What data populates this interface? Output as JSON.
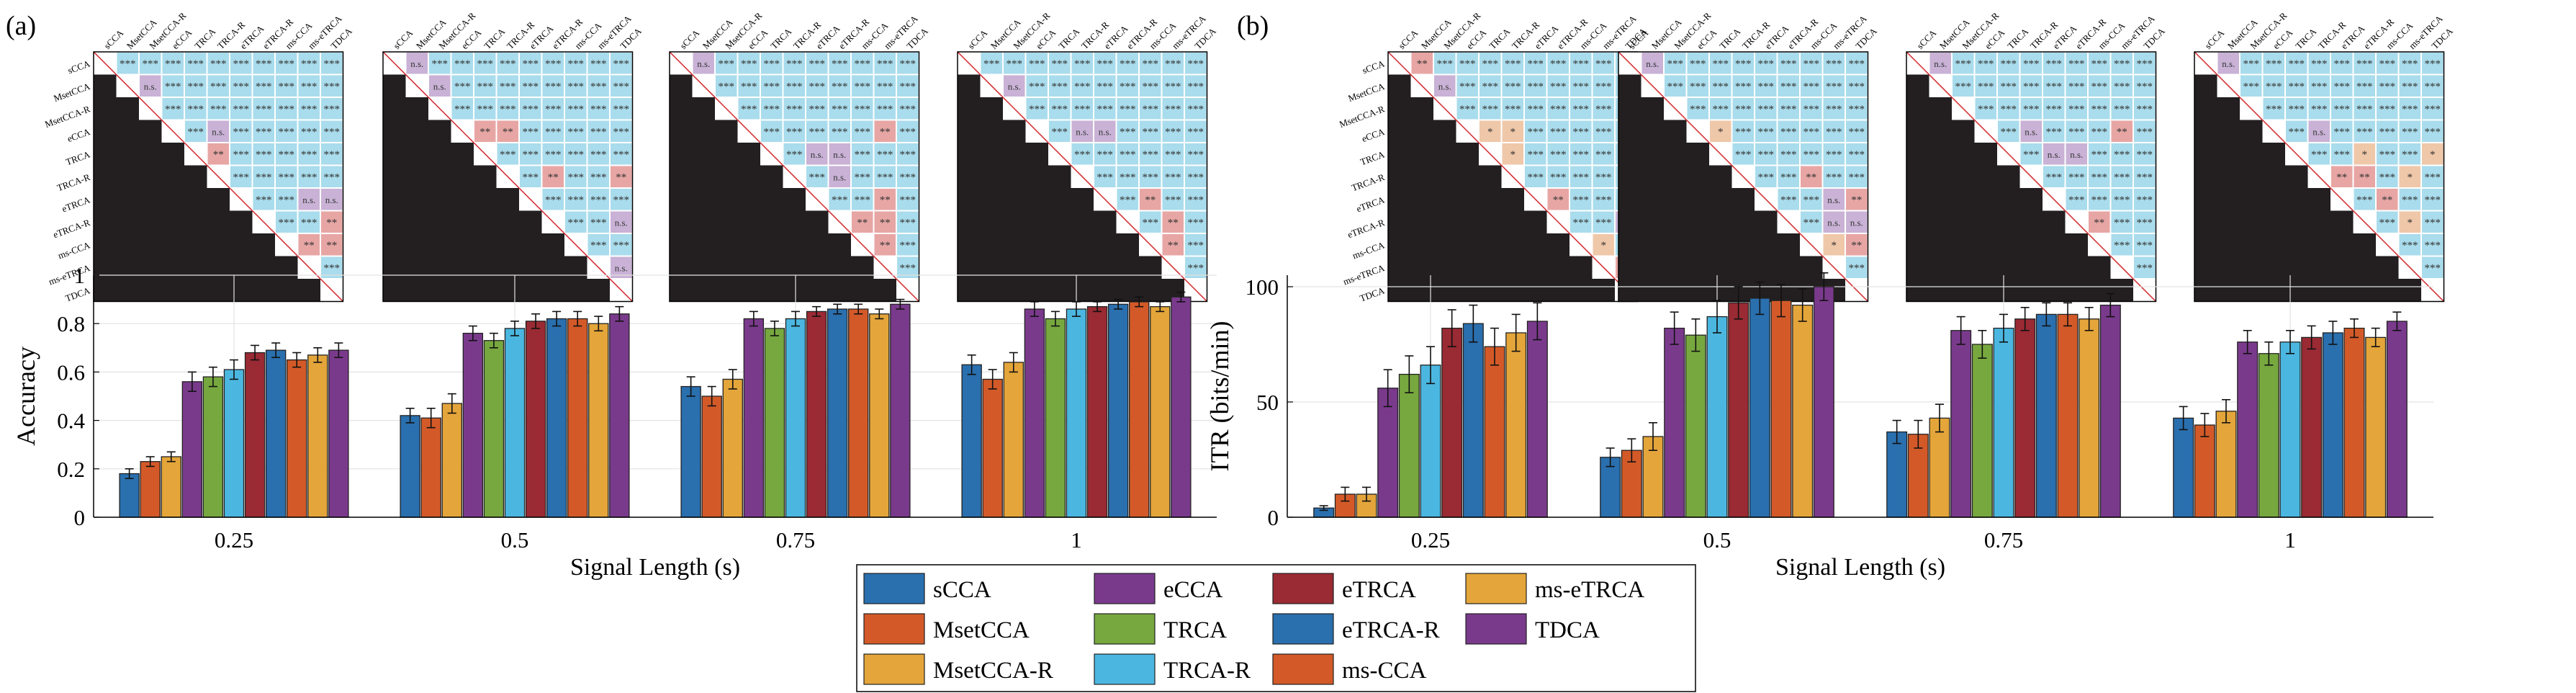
{
  "panels": [
    {
      "label": "(a)"
    },
    {
      "label": "(b)"
    }
  ],
  "methods": [
    "sCCA",
    "MsetCCA",
    "MsetCCA-R",
    "eCCA",
    "TRCA",
    "TRCA-R",
    "eTRCA",
    "eTRCA-R",
    "ms-CCA",
    "ms-eTRCA",
    "TDCA"
  ],
  "colors": {
    "sCCA": "#2a6fae",
    "MsetCCA": "#d35a28",
    "MsetCCA-R": "#e4a53a",
    "eCCA": "#7a3a8c",
    "TRCA": "#77a83f",
    "TRCA-R": "#4bb7e0",
    "eTRCA": "#9a2a33",
    "eTRCA-R": "#2a6fae",
    "ms-CCA": "#d35a28",
    "ms-eTRCA": "#e4a53a",
    "TDCA": "#7a3a8c",
    "matrix_bg": "#231f20",
    "sig_high": "#a9dcec",
    "ns": "#c9b2d6",
    "sig_mid": "#e7a6a4",
    "sig_low": "#efc7a9"
  },
  "legend": {
    "entries": [
      "sCCA",
      "eCCA",
      "eTRCA",
      "ms-eTRCA",
      "MsetCCA",
      "TRCA",
      "eTRCA-R",
      "TDCA",
      "MsetCCA-R",
      "TRCA-R",
      "ms-CCA"
    ]
  },
  "significance": {
    "ns_label": "n.s.",
    "levels": {
      "3": "***",
      "2": "**",
      "1": "*"
    },
    "matrices": [
      [
        [
          3,
          3,
          3,
          3,
          3,
          3,
          3,
          3,
          3,
          3
        ],
        [
          0,
          3,
          3,
          3,
          3,
          3,
          3,
          3,
          3,
          3
        ],
        [
          3,
          3,
          3,
          3,
          3,
          3,
          3,
          3,
          3
        ],
        [
          3,
          0,
          3,
          3,
          3,
          3,
          3,
          3
        ],
        [
          2,
          3,
          3,
          3,
          3,
          3,
          3
        ],
        [
          3,
          3,
          3,
          3,
          3,
          3
        ],
        [
          3,
          3,
          0,
          0,
          0
        ],
        [
          3,
          3,
          2,
          0
        ],
        [
          2,
          2,
          2
        ],
        [
          3,
          0
        ],
        [
          0
        ]
      ],
      [
        [
          0,
          3,
          3,
          3,
          3,
          3,
          3,
          3,
          3,
          3
        ],
        [
          0,
          3,
          3,
          3,
          3,
          3,
          3,
          3,
          3
        ],
        [
          3,
          3,
          3,
          3,
          3,
          3,
          3,
          3
        ],
        [
          2,
          2,
          3,
          3,
          3,
          3,
          3
        ],
        [
          3,
          3,
          3,
          3,
          3,
          3
        ],
        [
          3,
          2,
          3,
          3,
          2
        ],
        [
          3,
          3,
          3,
          3
        ],
        [
          3,
          3,
          0
        ],
        [
          3,
          3
        ],
        [
          0
        ]
      ],
      [
        [
          0,
          3,
          3,
          3,
          3,
          3,
          3,
          3,
          3,
          3
        ],
        [
          3,
          3,
          3,
          3,
          3,
          3,
          3,
          3,
          3
        ],
        [
          3,
          3,
          3,
          3,
          3,
          3,
          3,
          3
        ],
        [
          3,
          3,
          3,
          3,
          3,
          2,
          3
        ],
        [
          3,
          0,
          0,
          3,
          3,
          3
        ],
        [
          3,
          0,
          3,
          3,
          3
        ],
        [
          3,
          3,
          2,
          3
        ],
        [
          2,
          2,
          3
        ],
        [
          2,
          3
        ],
        [
          3
        ]
      ],
      [
        [
          3,
          3,
          3,
          3,
          3,
          3,
          3,
          3,
          3,
          3
        ],
        [
          0,
          3,
          3,
          3,
          3,
          3,
          3,
          3,
          3
        ],
        [
          3,
          3,
          3,
          3,
          3,
          3,
          3,
          3
        ],
        [
          3,
          0,
          0,
          3,
          3,
          3,
          3
        ],
        [
          3,
          3,
          3,
          3,
          3,
          3
        ],
        [
          3,
          3,
          3,
          3,
          3
        ],
        [
          3,
          2,
          3,
          3
        ],
        [
          3,
          2,
          3
        ],
        [
          2,
          3
        ],
        [
          3
        ]
      ],
      [
        [
          2,
          3,
          3,
          3,
          3,
          3,
          3,
          3,
          3,
          3
        ],
        [
          0,
          3,
          3,
          3,
          3,
          3,
          3,
          3,
          3
        ],
        [
          3,
          3,
          3,
          3,
          3,
          3,
          3,
          3
        ],
        [
          1,
          1,
          3,
          3,
          3,
          3,
          3
        ],
        [
          1,
          3,
          3,
          3,
          3,
          3
        ],
        [
          3,
          3,
          3,
          3,
          3
        ],
        [
          2,
          3,
          3,
          3
        ],
        [
          3,
          3,
          0
        ],
        [
          1,
          3
        ],
        [
          2
        ]
      ],
      [
        [
          0,
          3,
          3,
          3,
          3,
          3,
          3,
          3,
          3,
          3
        ],
        [
          3,
          3,
          3,
          3,
          3,
          3,
          3,
          3,
          3
        ],
        [
          3,
          3,
          3,
          3,
          3,
          3,
          3,
          3
        ],
        [
          1,
          3,
          3,
          3,
          3,
          3,
          3
        ],
        [
          3,
          3,
          3,
          3,
          3,
          3
        ],
        [
          3,
          3,
          2,
          3,
          3
        ],
        [
          3,
          3,
          0,
          2
        ],
        [
          3,
          0,
          0
        ],
        [
          1,
          2
        ],
        [
          3
        ]
      ],
      [
        [
          0,
          3,
          3,
          3,
          3,
          3,
          3,
          3,
          3,
          3
        ],
        [
          3,
          3,
          3,
          3,
          3,
          3,
          3,
          3,
          3
        ],
        [
          3,
          3,
          3,
          3,
          3,
          3,
          3,
          3
        ],
        [
          3,
          0,
          3,
          3,
          3,
          2,
          3
        ],
        [
          3,
          0,
          0,
          3,
          3,
          3
        ],
        [
          3,
          3,
          3,
          3,
          3
        ],
        [
          3,
          3,
          3,
          3
        ],
        [
          2,
          3,
          3
        ],
        [
          3,
          3
        ],
        [
          3
        ]
      ],
      [
        [
          0,
          3,
          3,
          3,
          3,
          3,
          3,
          3,
          3,
          3
        ],
        [
          3,
          3,
          3,
          3,
          3,
          3,
          3,
          3,
          3
        ],
        [
          3,
          3,
          3,
          3,
          3,
          3,
          3,
          3
        ],
        [
          3,
          0,
          3,
          3,
          3,
          3,
          3
        ],
        [
          3,
          3,
          1,
          3,
          3,
          1
        ],
        [
          2,
          2,
          3,
          1,
          3
        ],
        [
          3,
          2,
          3,
          3
        ],
        [
          3,
          1,
          3
        ],
        [
          3,
          3
        ],
        [
          3
        ]
      ]
    ]
  },
  "chart_data": [
    {
      "type": "bar",
      "panel": "(a)",
      "xlabel": "Signal Length (s)",
      "ylabel": "Accuracy",
      "categories": [
        "0.25",
        "0.5",
        "0.75",
        "1"
      ],
      "ylim": [
        0,
        1
      ],
      "yticks": [
        "0",
        "0.2",
        "0.4",
        "0.6",
        "0.8",
        "1"
      ],
      "grid": true,
      "series": [
        {
          "name": "sCCA",
          "values": [
            0.18,
            0.42,
            0.54,
            0.63
          ],
          "err": [
            0.02,
            0.03,
            0.04,
            0.04
          ]
        },
        {
          "name": "MsetCCA",
          "values": [
            0.23,
            0.41,
            0.5,
            0.57
          ],
          "err": [
            0.02,
            0.04,
            0.04,
            0.04
          ]
        },
        {
          "name": "MsetCCA-R",
          "values": [
            0.25,
            0.47,
            0.57,
            0.64
          ],
          "err": [
            0.02,
            0.04,
            0.04,
            0.04
          ]
        },
        {
          "name": "eCCA",
          "values": [
            0.56,
            0.76,
            0.82,
            0.86
          ],
          "err": [
            0.04,
            0.03,
            0.03,
            0.03
          ]
        },
        {
          "name": "TRCA",
          "values": [
            0.58,
            0.73,
            0.78,
            0.82
          ],
          "err": [
            0.04,
            0.03,
            0.03,
            0.03
          ]
        },
        {
          "name": "TRCA-R",
          "values": [
            0.61,
            0.78,
            0.82,
            0.86
          ],
          "err": [
            0.04,
            0.03,
            0.03,
            0.03
          ]
        },
        {
          "name": "eTRCA",
          "values": [
            0.68,
            0.81,
            0.85,
            0.87
          ],
          "err": [
            0.03,
            0.03,
            0.02,
            0.02
          ]
        },
        {
          "name": "eTRCA-R",
          "values": [
            0.69,
            0.82,
            0.86,
            0.88
          ],
          "err": [
            0.03,
            0.03,
            0.02,
            0.02
          ]
        },
        {
          "name": "ms-CCA",
          "values": [
            0.65,
            0.82,
            0.86,
            0.89
          ],
          "err": [
            0.03,
            0.03,
            0.02,
            0.02
          ]
        },
        {
          "name": "ms-eTRCA",
          "values": [
            0.67,
            0.8,
            0.84,
            0.87
          ],
          "err": [
            0.03,
            0.03,
            0.02,
            0.02
          ]
        },
        {
          "name": "TDCA",
          "values": [
            0.69,
            0.84,
            0.88,
            0.91
          ],
          "err": [
            0.03,
            0.03,
            0.02,
            0.02
          ]
        }
      ]
    },
    {
      "type": "bar",
      "panel": "(b)",
      "xlabel": "Signal Length (s)",
      "ylabel": "ITR (bits/min)",
      "categories": [
        "0.25",
        "0.5",
        "0.75",
        "1"
      ],
      "ylim": [
        0,
        105
      ],
      "yticks": [
        "0",
        "50",
        "100"
      ],
      "grid": true,
      "series": [
        {
          "name": "sCCA",
          "values": [
            4,
            26,
            37,
            43
          ],
          "err": [
            1,
            4,
            5,
            5
          ]
        },
        {
          "name": "MsetCCA",
          "values": [
            10,
            29,
            36,
            40
          ],
          "err": [
            3,
            5,
            6,
            5
          ]
        },
        {
          "name": "MsetCCA-R",
          "values": [
            10,
            35,
            43,
            46
          ],
          "err": [
            3,
            6,
            6,
            5
          ]
        },
        {
          "name": "eCCA",
          "values": [
            56,
            82,
            81,
            76
          ],
          "err": [
            8,
            7,
            6,
            5
          ]
        },
        {
          "name": "TRCA",
          "values": [
            62,
            79,
            75,
            71
          ],
          "err": [
            8,
            7,
            6,
            5
          ]
        },
        {
          "name": "TRCA-R",
          "values": [
            66,
            87,
            82,
            76
          ],
          "err": [
            8,
            7,
            6,
            5
          ]
        },
        {
          "name": "eTRCA",
          "values": [
            82,
            93,
            86,
            78
          ],
          "err": [
            8,
            7,
            5,
            5
          ]
        },
        {
          "name": "eTRCA-R",
          "values": [
            84,
            95,
            88,
            80
          ],
          "err": [
            8,
            7,
            5,
            5
          ]
        },
        {
          "name": "ms-CCA",
          "values": [
            74,
            94,
            88,
            82
          ],
          "err": [
            8,
            7,
            5,
            4
          ]
        },
        {
          "name": "ms-eTRCA",
          "values": [
            80,
            92,
            86,
            78
          ],
          "err": [
            8,
            7,
            5,
            4
          ]
        },
        {
          "name": "TDCA",
          "values": [
            85,
            100,
            92,
            85
          ],
          "err": [
            8,
            6,
            5,
            4
          ]
        }
      ]
    }
  ]
}
